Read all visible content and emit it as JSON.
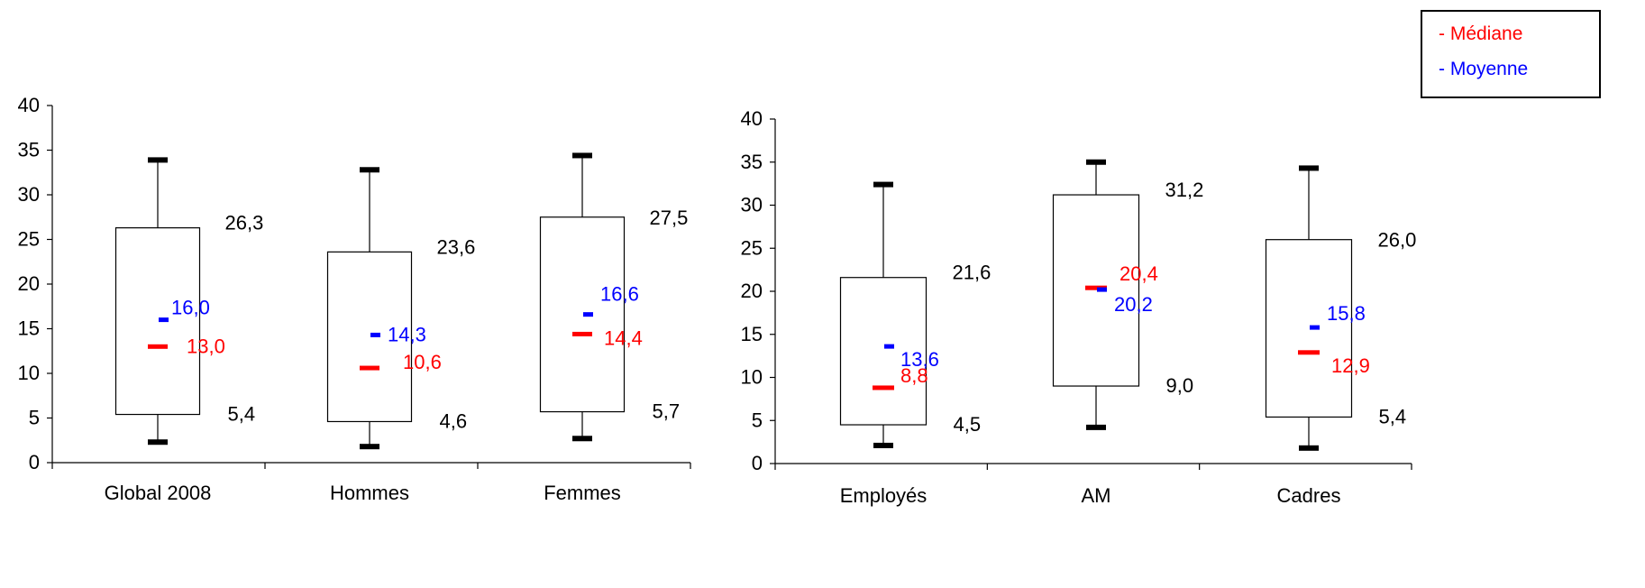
{
  "colors": {
    "median": "#ff0000",
    "mean": "#0000ff",
    "ink": "#000000"
  },
  "legend": {
    "median_label": "- Médiane",
    "mean_label": "- Moyenne"
  },
  "chart_data": [
    {
      "type": "box",
      "ylim": [
        0,
        40
      ],
      "yticks": [
        "0",
        "5",
        "10",
        "15",
        "20",
        "25",
        "30",
        "35",
        "40"
      ],
      "categories": [
        "Global 2008",
        "Hommes",
        "Femmes"
      ],
      "boxes": [
        {
          "whisker_low": 2.3,
          "q1": 5.4,
          "q3": 26.3,
          "whisker_high": 33.9,
          "median": 13.0,
          "mean": 16.0,
          "q1_label": "5,4",
          "q3_label": "26,3",
          "median_label": "13,0",
          "mean_label": "16,0"
        },
        {
          "whisker_low": 1.8,
          "q1": 4.6,
          "q3": 23.6,
          "whisker_high": 32.8,
          "median": 10.6,
          "mean": 14.3,
          "q1_label": "4,6",
          "q3_label": "23,6",
          "median_label": "10,6",
          "mean_label": "14,3"
        },
        {
          "whisker_low": 2.7,
          "q1": 5.7,
          "q3": 27.5,
          "whisker_high": 34.4,
          "median": 14.4,
          "mean": 16.6,
          "q1_label": "5,7",
          "q3_label": "27,5",
          "median_label": "14,4",
          "mean_label": "16,6"
        }
      ]
    },
    {
      "type": "box",
      "ylim": [
        0,
        40
      ],
      "yticks": [
        "0",
        "5",
        "10",
        "15",
        "20",
        "25",
        "30",
        "35",
        "40"
      ],
      "categories": [
        "Employés",
        "AM",
        "Cadres"
      ],
      "boxes": [
        {
          "whisker_low": 2.1,
          "q1": 4.5,
          "q3": 21.6,
          "whisker_high": 32.4,
          "median": 8.8,
          "mean": 13.6,
          "q1_label": "4,5",
          "q3_label": "21,6",
          "median_label": "8,8",
          "mean_label": "13,6"
        },
        {
          "whisker_low": 4.2,
          "q1": 9.0,
          "q3": 31.2,
          "whisker_high": 35.0,
          "median": 20.4,
          "mean": 20.2,
          "q1_label": "9,0",
          "q3_label": "31,2",
          "median_label": "20,4",
          "mean_label": "20,2"
        },
        {
          "whisker_low": 1.8,
          "q1": 5.4,
          "q3": 26.0,
          "whisker_high": 34.3,
          "median": 12.9,
          "mean": 15.8,
          "q1_label": "5,4",
          "q3_label": "26,0",
          "median_label": "12,9",
          "mean_label": "15,8"
        }
      ]
    }
  ]
}
